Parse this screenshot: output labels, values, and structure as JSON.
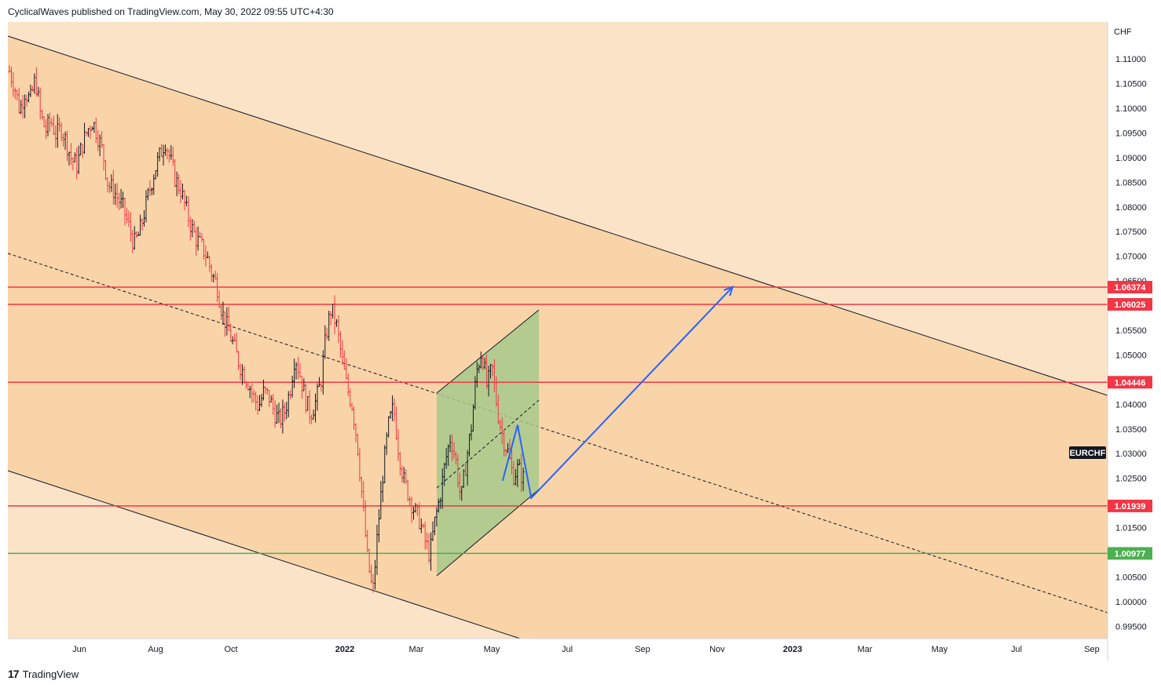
{
  "header": {
    "text": "CyclicalWaves published on TradingView.com, May 30, 2022 09:55 UTC+4:30"
  },
  "footer": {
    "logo": "17",
    "brand": "TradingView"
  },
  "chart_data": {
    "type": "bar",
    "symbol": "EURCHF",
    "currency": "CHF",
    "y_ticks": [
      "1.11000",
      "1.10500",
      "1.10000",
      "1.09500",
      "1.09000",
      "1.08500",
      "1.08000",
      "1.07500",
      "1.07000",
      "1.06500",
      "1.05500",
      "1.05000",
      "1.04000",
      "1.03500",
      "1.03000",
      "1.02500",
      "1.01500",
      "1.00500",
      "1.00000",
      "0.99500"
    ],
    "x_ticks": [
      "Jun",
      "Aug",
      "Oct",
      "2022",
      "Mar",
      "May",
      "Jul",
      "Sep",
      "Nov",
      "2023",
      "Mar",
      "May",
      "Jul",
      "Sep"
    ],
    "ylim": [
      0.9925,
      1.1175
    ],
    "horizontal_levels": [
      {
        "label": "1.06374",
        "value": 1.06374,
        "color": "#f23645"
      },
      {
        "label": "1.06025",
        "value": 1.06025,
        "color": "#f23645"
      },
      {
        "label": "1.04446",
        "value": 1.04446,
        "color": "#f23645"
      },
      {
        "label": "1.01939",
        "value": 1.01939,
        "color": "#f23645"
      },
      {
        "label": "1.00977",
        "value": 1.00977,
        "color": "#4caf50"
      }
    ],
    "price_path": [
      1.1075,
      1.1045,
      1.0995,
      1.1035,
      1.1015,
      1.106,
      1.0985,
      1.0955,
      1.0975,
      1.0945,
      1.096,
      1.093,
      1.0895,
      1.0885,
      1.0925,
      1.0955,
      1.0975,
      1.0945,
      1.091,
      1.0845,
      1.0835,
      1.0815,
      1.0795,
      1.076,
      1.0725,
      1.0745,
      1.079,
      1.0835,
      1.0875,
      1.0905,
      1.0935,
      1.0895,
      1.0855,
      1.0835,
      1.0795,
      1.076,
      1.0735,
      1.072,
      1.07,
      1.0665,
      1.064,
      1.0585,
      1.0555,
      1.0525,
      1.049,
      1.0465,
      1.0445,
      1.0415,
      1.0395,
      1.0425,
      1.0415,
      1.0385,
      1.0365,
      1.0385,
      1.0425,
      1.05,
      1.046,
      1.041,
      1.038,
      1.0405,
      1.0445,
      1.054,
      1.0595,
      1.056,
      1.0495,
      1.0435,
      1.04,
      1.0325,
      1.0205,
      1.0085,
      1.0015,
      1.015,
      1.0265,
      1.0355,
      1.0395,
      1.0305,
      1.0245,
      1.0215,
      1.0185,
      1.0165,
      1.0125,
      1.0095,
      1.0165,
      1.0215,
      1.0285,
      1.0335,
      1.0285,
      1.0205,
      1.0285,
      1.0355,
      1.0465,
      1.051,
      1.0435,
      1.0475,
      1.039,
      1.0335,
      1.0305,
      1.0255,
      1.027,
      1.025
    ],
    "scenario_path": [
      {
        "date": "2022-05-14",
        "price": 1.0245
      },
      {
        "date": "2022-05-26",
        "price": 1.0358
      },
      {
        "date": "2022-06-06",
        "price": 1.021
      },
      {
        "date": "2022-11-15",
        "price": 1.0638
      }
    ],
    "colors": {
      "up": "#131722",
      "down": "#f23645",
      "background": "#fbe3c8",
      "channel_fill": "#f9d4a8",
      "green_channel": "#a8c98c",
      "projection": "#2962ff"
    }
  }
}
